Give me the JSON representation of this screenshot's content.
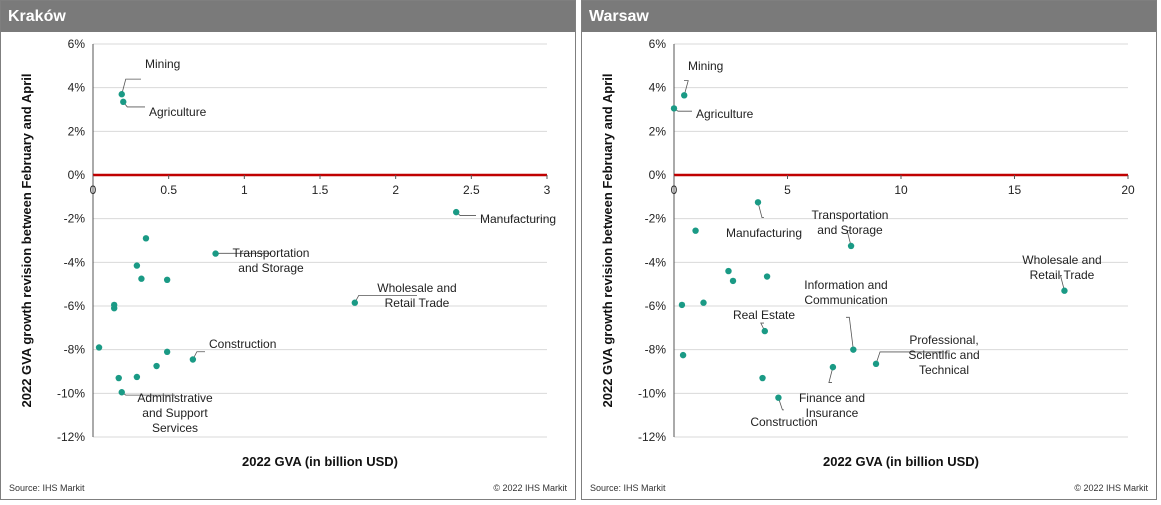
{
  "chart_data": [
    {
      "panel": "left",
      "type": "scatter",
      "title": "Kraków",
      "xlabel": "2022 GVA (in billion USD)",
      "ylabel": "2022 GVA growth revision between February and April",
      "xlim": [
        0,
        3
      ],
      "ylim": [
        -12,
        6
      ],
      "xticks": [
        0,
        0.5,
        1,
        1.5,
        2,
        2.5,
        3
      ],
      "xtick_labels": [
        "0",
        "0.5",
        "1",
        "1.5",
        "2",
        "2.5",
        "3"
      ],
      "yticks": [
        -12,
        -10,
        -8,
        -6,
        -4,
        -2,
        0,
        2,
        4,
        6
      ],
      "ytick_labels": [
        "-12%",
        "-10%",
        "-8%",
        "-6%",
        "-4%",
        "-2%",
        "0%",
        "2%",
        "4%",
        "6%"
      ],
      "points": [
        {
          "x": 0.19,
          "y": 3.7
        },
        {
          "x": 0.2,
          "y": 3.35
        },
        {
          "x": 2.4,
          "y": -1.7
        },
        {
          "x": 0.35,
          "y": -2.9
        },
        {
          "x": 0.29,
          "y": -4.15
        },
        {
          "x": 0.32,
          "y": -4.75
        },
        {
          "x": 0.49,
          "y": -4.8
        },
        {
          "x": 0.81,
          "y": -3.6
        },
        {
          "x": 1.73,
          "y": -5.85
        },
        {
          "x": 0.14,
          "y": -5.95
        },
        {
          "x": 0.14,
          "y": -6.1
        },
        {
          "x": 0.04,
          "y": -7.9
        },
        {
          "x": 0.49,
          "y": -8.1
        },
        {
          "x": 0.66,
          "y": -8.45
        },
        {
          "x": 0.42,
          "y": -8.75
        },
        {
          "x": 0.29,
          "y": -9.25
        },
        {
          "x": 0.17,
          "y": -9.3
        },
        {
          "x": 0.19,
          "y": -9.95
        }
      ],
      "annotations": [
        {
          "lines": [
            "Mining"
          ],
          "point": 0,
          "anchor": "start"
        },
        {
          "lines": [
            "Agriculture"
          ],
          "point": 1,
          "anchor": "start"
        },
        {
          "lines": [
            "Manufacturing"
          ],
          "point": 2,
          "anchor": "start"
        },
        {
          "lines": [
            "Transportation",
            "and Storage"
          ],
          "point": 7,
          "anchor": "middle"
        },
        {
          "lines": [
            "Wholesale and",
            "Retail Trade"
          ],
          "point": 8,
          "anchor": "middle"
        },
        {
          "lines": [
            "Construction"
          ],
          "point": 13,
          "anchor": "start"
        },
        {
          "lines": [
            "Administrative",
            "and Support",
            "Services"
          ],
          "point": 17,
          "anchor": "middle"
        }
      ],
      "source": "Source:  IHS Markit",
      "copyright": "© 2022  IHS Markit"
    },
    {
      "panel": "right",
      "type": "scatter",
      "title": "Warsaw",
      "xlabel": "2022 GVA (in billion USD)",
      "ylabel": "2022 GVA growth revision between February and April",
      "xlim": [
        0,
        20
      ],
      "ylim": [
        -12,
        6
      ],
      "xticks": [
        0,
        5,
        10,
        15,
        20
      ],
      "xtick_labels": [
        "0",
        "5",
        "10",
        "15",
        "20"
      ],
      "yticks": [
        -12,
        -10,
        -8,
        -6,
        -4,
        -2,
        0,
        2,
        4,
        6
      ],
      "ytick_labels": [
        "-12%",
        "-10%",
        "-8%",
        "-6%",
        "-4%",
        "-2%",
        "0%",
        "2%",
        "4%",
        "6%"
      ],
      "points": [
        {
          "x": 0.45,
          "y": 3.65
        },
        {
          "x": 0.0,
          "y": 3.05
        },
        {
          "x": 3.7,
          "y": -1.25
        },
        {
          "x": 0.95,
          "y": -2.55
        },
        {
          "x": 7.8,
          "y": -3.25
        },
        {
          "x": 2.4,
          "y": -4.4
        },
        {
          "x": 2.6,
          "y": -4.85
        },
        {
          "x": 4.1,
          "y": -4.65
        },
        {
          "x": 17.2,
          "y": -5.3
        },
        {
          "x": 0.35,
          "y": -5.95
        },
        {
          "x": 1.3,
          "y": -5.85
        },
        {
          "x": 4.0,
          "y": -7.15
        },
        {
          "x": 0.4,
          "y": -8.25
        },
        {
          "x": 7.9,
          "y": -8.0
        },
        {
          "x": 8.9,
          "y": -8.65
        },
        {
          "x": 7.0,
          "y": -8.8
        },
        {
          "x": 3.9,
          "y": -9.3
        },
        {
          "x": 4.6,
          "y": -10.2
        }
      ],
      "annotations": [
        {
          "lines": [
            "Mining"
          ],
          "point": 0,
          "anchor": "start"
        },
        {
          "lines": [
            "Agriculture"
          ],
          "point": 1,
          "anchor": "start"
        },
        {
          "lines": [
            "Manufacturing"
          ],
          "point": 2,
          "anchor": "middle"
        },
        {
          "lines": [
            "Transportation",
            "and Storage"
          ],
          "point": 4,
          "anchor": "middle"
        },
        {
          "lines": [
            "Wholesale and",
            "Retail Trade"
          ],
          "point": 8,
          "anchor": "middle"
        },
        {
          "lines": [
            "Real Estate"
          ],
          "point": 11,
          "anchor": "middle"
        },
        {
          "lines": [
            "Information  and",
            "Communication"
          ],
          "point": 13,
          "anchor": "middle"
        },
        {
          "lines": [
            "Professional,",
            "Scientific and",
            "Technical"
          ],
          "point": 14,
          "anchor": "middle"
        },
        {
          "lines": [
            "Finance and",
            "Insurance"
          ],
          "point": 15,
          "anchor": "middle"
        },
        {
          "lines": [
            "Construction"
          ],
          "point": 17,
          "anchor": "middle"
        }
      ],
      "source": "Source:  IHS Markit",
      "copyright": "© 2022  IHS Markit"
    }
  ],
  "colors": {
    "point": "#1a9a85",
    "zero_line": "#c00000",
    "grid": "#d9d9d9",
    "header_bg": "#7a7a7a"
  }
}
